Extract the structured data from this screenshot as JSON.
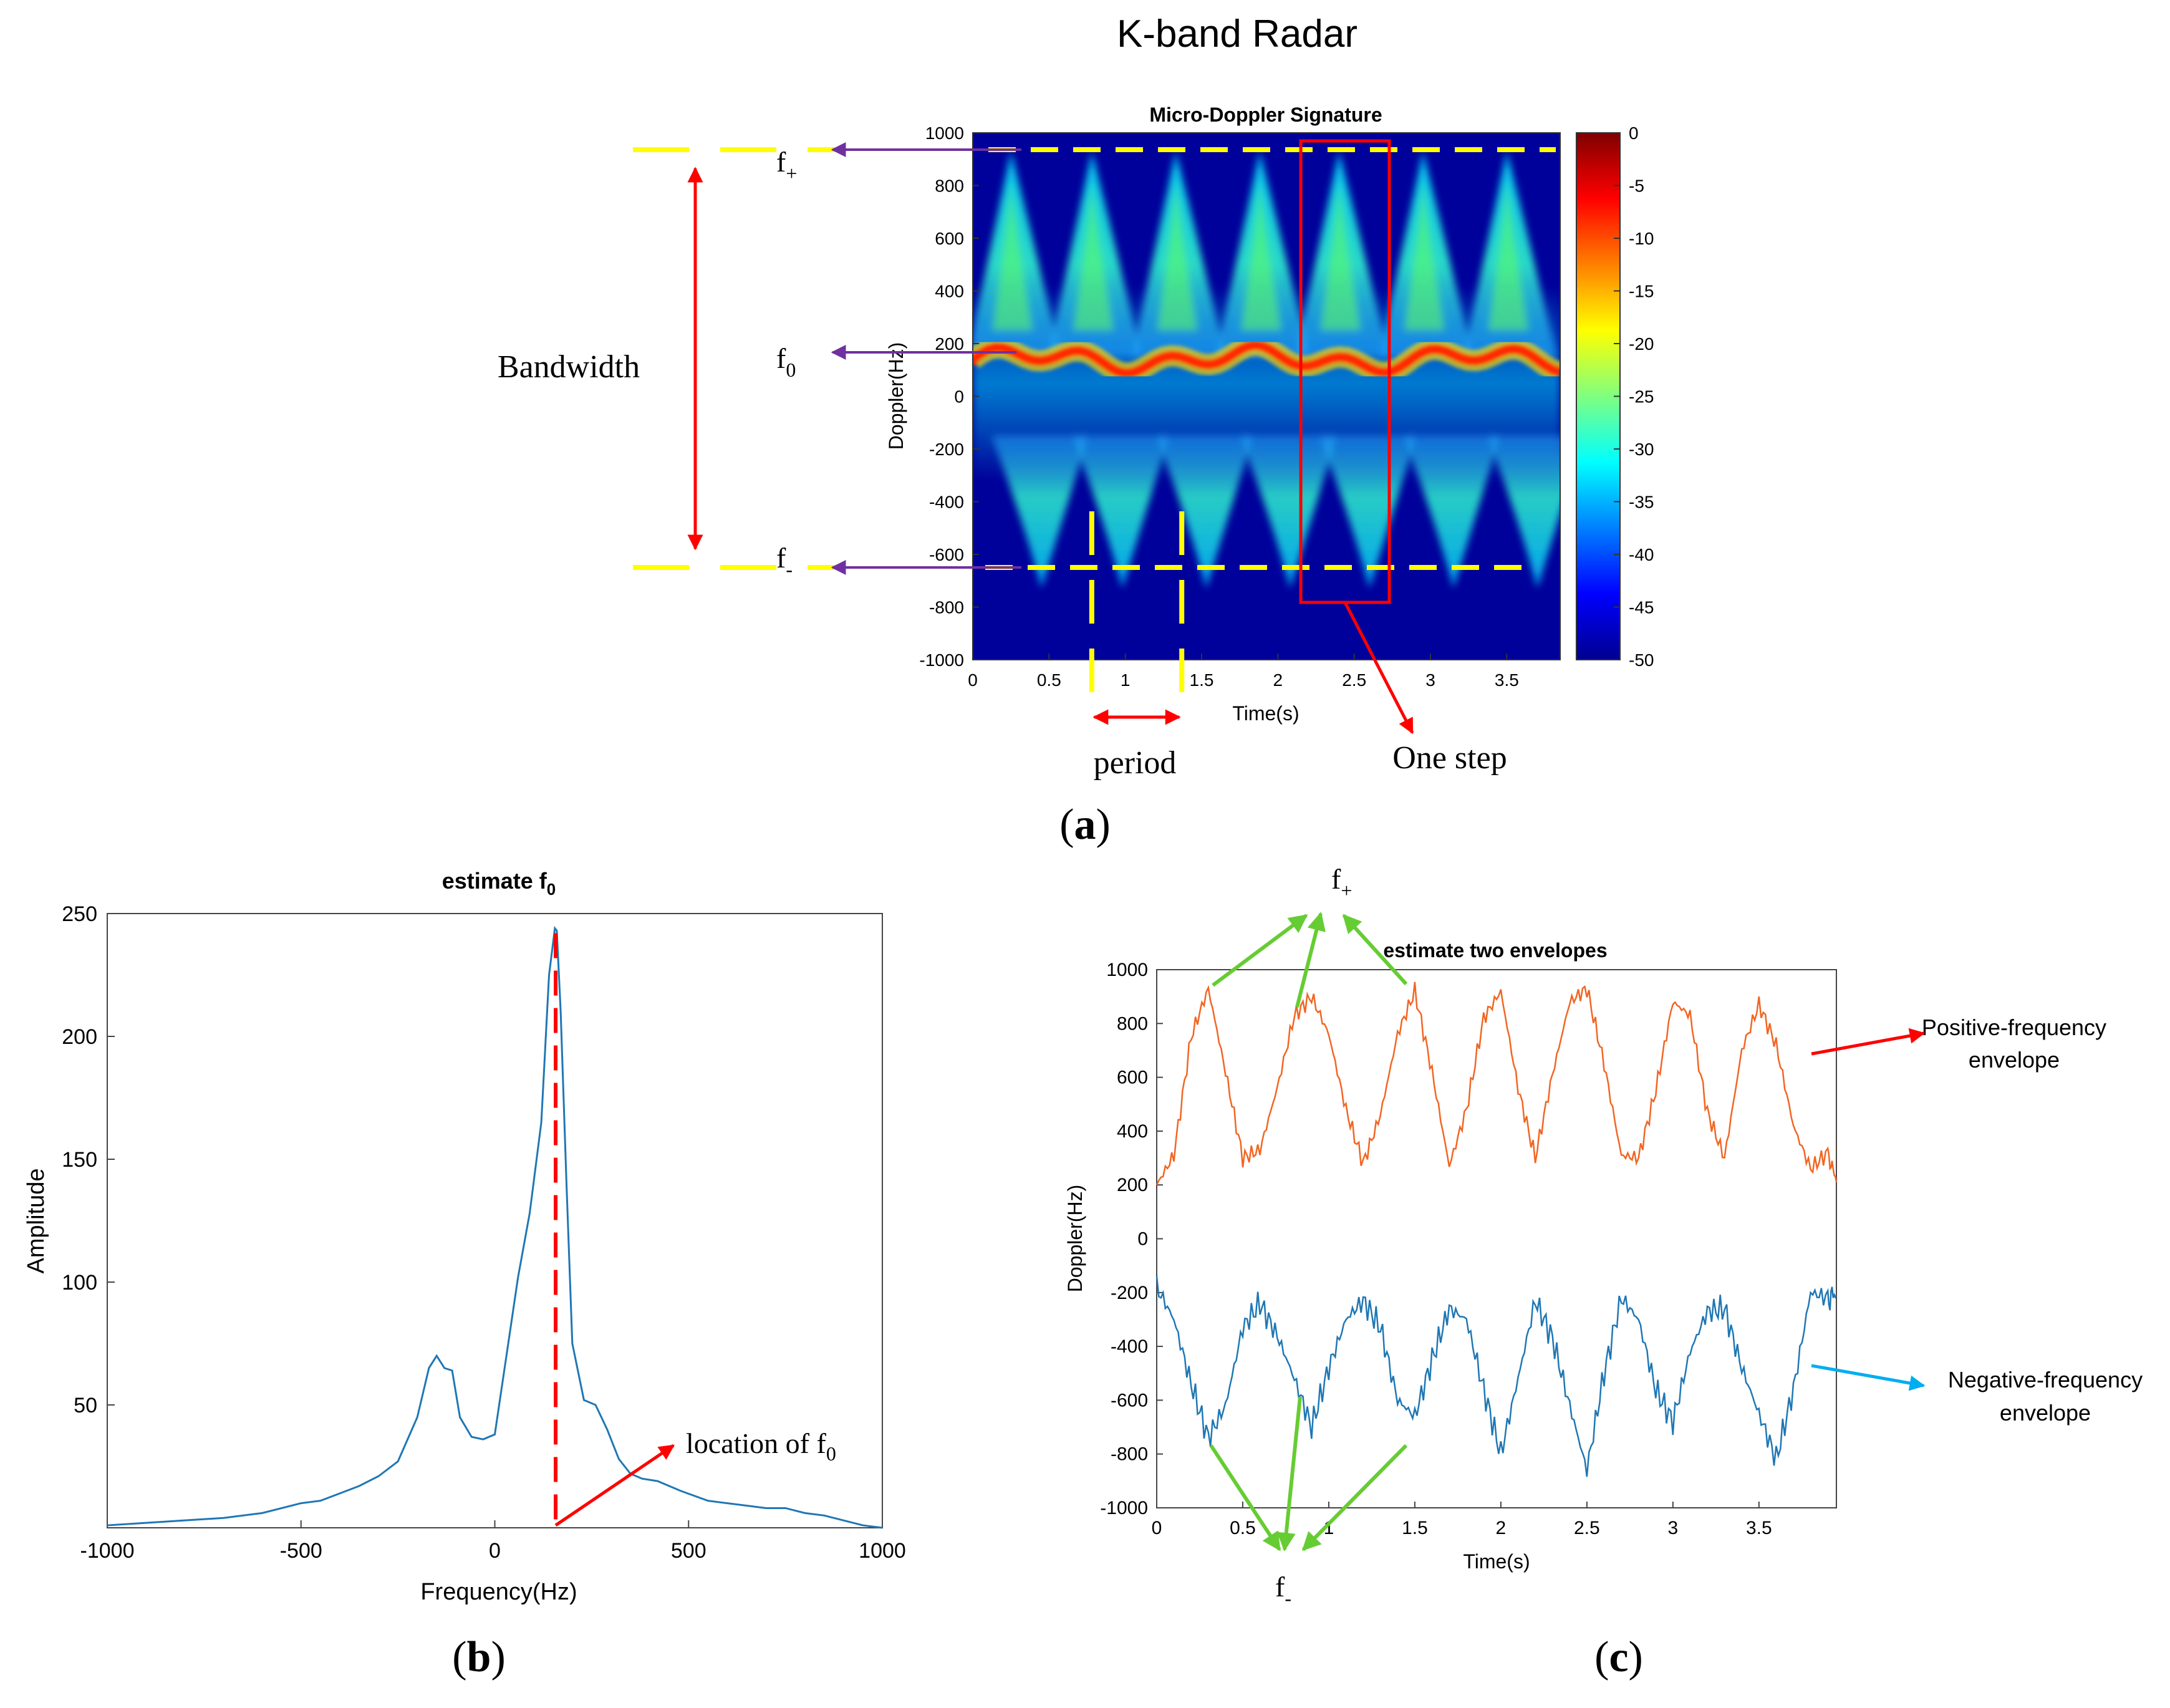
{
  "figure_title": "K-band Radar",
  "panel_labels": {
    "a": "(a)",
    "b": "(b)",
    "c": "(c)"
  },
  "colors": {
    "yellow": "#ffff00",
    "purple": "#7030a0",
    "red": "#ff0000",
    "green": "#66cc33",
    "orange": "#f26522",
    "blue": "#1f77b4",
    "cyan_arrow": "#00aeef"
  },
  "chart_data": [
    {
      "id": "a",
      "type": "heatmap",
      "title": "Micro-Doppler Signature",
      "xlabel": "Time(s)",
      "ylabel": "Doppler(Hz)",
      "xlim": [
        0,
        3.85
      ],
      "ylim": [
        -1000,
        1000
      ],
      "xticks": [
        0,
        0.5,
        1,
        1.5,
        2,
        2.5,
        3,
        3.5
      ],
      "xtick_labels": [
        "0",
        "0.5",
        "1",
        "1.5",
        "2",
        "2.5",
        "3",
        "3.5"
      ],
      "yticks": [
        1000,
        800,
        600,
        400,
        200,
        0,
        -200,
        -400,
        -600,
        -800,
        -1000
      ],
      "ytick_labels": [
        "1000",
        "800",
        "600",
        "400",
        "200",
        "0",
        "-200",
        "-400",
        "-600",
        "-800",
        "-1000"
      ],
      "colorbar": {
        "min": -50,
        "max": 0,
        "ticks": [
          0,
          -5,
          -10,
          -15,
          -20,
          -25,
          -30,
          -35,
          -40,
          -45,
          -50
        ],
        "tick_labels": [
          "0",
          "-5",
          "-10",
          "-15",
          "-20",
          "-25",
          "-30",
          "-35",
          "-40",
          "-45",
          "-50"
        ]
      },
      "peak_times": [
        0.25,
        0.78,
        1.33,
        1.88,
        2.4,
        2.95,
        3.5
      ],
      "f_plus_hz": 930,
      "f0_hz": 180,
      "f_minus_hz": -650,
      "period_marks_s": [
        0.78,
        1.37
      ],
      "one_step_box_s": [
        2.15,
        2.73
      ],
      "annotations": {
        "f_plus": "f",
        "f_plus_sub": "+",
        "f0": "f",
        "f0_sub": "0",
        "f_minus": "f",
        "f_minus_sub": "-",
        "bandwidth": "Bandwidth",
        "period": "period",
        "one_step": "One step"
      }
    },
    {
      "id": "b",
      "type": "line",
      "title": "estimate f",
      "title_sub": "0",
      "xlabel": "Frequency(Hz)",
      "ylabel": "Amplitude",
      "xlim": [
        -1000,
        1000
      ],
      "ylim": [
        0,
        250
      ],
      "xticks": [
        -1000,
        -500,
        0,
        500,
        1000
      ],
      "xtick_labels": [
        "-1000",
        "-500",
        "0",
        "500",
        "1000"
      ],
      "yticks": [
        250,
        200,
        150,
        100,
        50
      ],
      "ytick_labels": [
        "250",
        "200",
        "150",
        "100",
        "50"
      ],
      "series": [
        {
          "name": "spectrum",
          "x": [
            -1000,
            -900,
            -800,
            -700,
            -600,
            -500,
            -450,
            -400,
            -350,
            -300,
            -250,
            -200,
            -170,
            -150,
            -130,
            -110,
            -90,
            -60,
            -30,
            0,
            30,
            60,
            90,
            120,
            140,
            155,
            160,
            170,
            185,
            200,
            230,
            260,
            290,
            320,
            350,
            380,
            420,
            480,
            550,
            600,
            650,
            700,
            750,
            800,
            850,
            900,
            950,
            1000
          ],
          "values": [
            1,
            2,
            3,
            4,
            6,
            10,
            11,
            14,
            17,
            21,
            27,
            45,
            65,
            70,
            65,
            64,
            45,
            37,
            36,
            38,
            70,
            102,
            128,
            165,
            225,
            244,
            243,
            210,
            140,
            75,
            52,
            50,
            40,
            28,
            22,
            20,
            19,
            15,
            11,
            10,
            9,
            8,
            8,
            6,
            5,
            3,
            1,
            0
          ]
        }
      ],
      "f0_location_hz": 157,
      "annotation": "location of f",
      "annotation_sub": "0"
    },
    {
      "id": "c",
      "type": "line",
      "title": "estimate two envelopes",
      "xlabel": "Time(s)",
      "ylabel": "Doppler(Hz)",
      "xlim": [
        0,
        3.95
      ],
      "ylim": [
        -1000,
        1000
      ],
      "xticks": [
        0,
        0.5,
        1,
        1.5,
        2,
        2.5,
        3,
        3.5
      ],
      "xtick_labels": [
        "0",
        "0.5",
        "1",
        "1.5",
        "2",
        "2.5",
        "3",
        "3.5"
      ],
      "yticks": [
        1000,
        800,
        600,
        400,
        200,
        0,
        -200,
        -400,
        -600,
        -800,
        -1000
      ],
      "ytick_labels": [
        "1000",
        "800",
        "600",
        "400",
        "200",
        "0",
        "-200",
        "-400",
        "-600",
        "-800",
        "-1000"
      ],
      "series": [
        {
          "name": "Positive-frequency envelope",
          "x": [
            0,
            0.1,
            0.2,
            0.3,
            0.4,
            0.5,
            0.6,
            0.7,
            0.8,
            0.9,
            1.0,
            1.1,
            1.2,
            1.3,
            1.4,
            1.5,
            1.6,
            1.7,
            1.8,
            1.9,
            2.0,
            2.1,
            2.2,
            2.3,
            2.4,
            2.5,
            2.6,
            2.7,
            2.8,
            2.9,
            3.0,
            3.1,
            3.2,
            3.3,
            3.4,
            3.5,
            3.6,
            3.7,
            3.8,
            3.9,
            3.95
          ],
          "values": [
            200,
            310,
            750,
            930,
            620,
            300,
            330,
            560,
            830,
            900,
            760,
            480,
            280,
            460,
            760,
            920,
            620,
            270,
            480,
            820,
            920,
            560,
            300,
            610,
            880,
            930,
            650,
            310,
            300,
            550,
            880,
            830,
            470,
            300,
            700,
            870,
            720,
            420,
            260,
            320,
            210
          ]
        },
        {
          "name": "Negative-frequency envelope",
          "x": [
            0,
            0.1,
            0.2,
            0.3,
            0.4,
            0.5,
            0.6,
            0.7,
            0.8,
            0.9,
            1.0,
            1.1,
            1.2,
            1.3,
            1.4,
            1.5,
            1.6,
            1.7,
            1.8,
            1.9,
            2.0,
            2.1,
            2.2,
            2.3,
            2.4,
            2.5,
            2.6,
            2.7,
            2.8,
            2.9,
            3.0,
            3.1,
            3.2,
            3.3,
            3.4,
            3.5,
            3.6,
            3.7,
            3.8,
            3.9,
            3.95
          ],
          "values": [
            -180,
            -300,
            -540,
            -740,
            -620,
            -330,
            -240,
            -360,
            -520,
            -700,
            -480,
            -300,
            -230,
            -330,
            -600,
            -660,
            -450,
            -260,
            -300,
            -560,
            -800,
            -520,
            -230,
            -370,
            -620,
            -860,
            -500,
            -220,
            -300,
            -560,
            -680,
            -420,
            -270,
            -260,
            -480,
            -650,
            -820,
            -560,
            -200,
            -220,
            -210
          ]
        }
      ],
      "annotations": {
        "f_plus": "f",
        "f_plus_sub": "+",
        "f_minus": "f",
        "f_minus_sub": "-",
        "pos_env_line1": "Positive-frequency",
        "pos_env_line2": "envelope",
        "neg_env_line1": "Negative-frequency",
        "neg_env_line2": "envelope"
      }
    }
  ]
}
